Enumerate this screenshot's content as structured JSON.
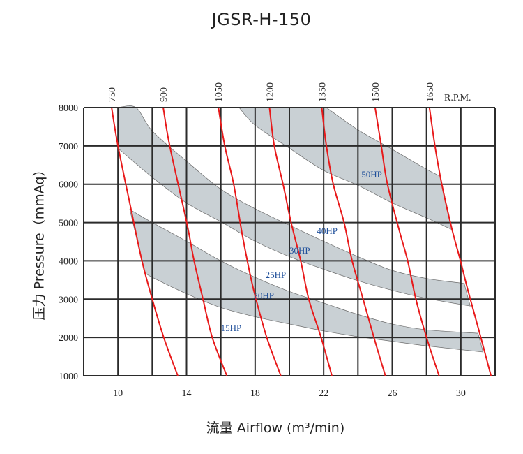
{
  "chart_data": {
    "type": "line",
    "title": "JGSR-H-150",
    "xlabel": "流量 Airflow (m³/min)",
    "ylabel": "压力 Pressure（mmAq）",
    "xlim": [
      8,
      32
    ],
    "ylim": [
      1000,
      8000
    ],
    "x_grid_step": 2,
    "y_grid_step": 1000,
    "grid": true,
    "x_tick_labels": [
      10,
      14,
      18,
      22,
      26,
      30
    ],
    "y_tick_labels": [
      1000,
      2000,
      3000,
      4000,
      5000,
      6000,
      7000,
      8000
    ],
    "rpm_unit_label": "R.P.M.",
    "series_color": "#e8191a",
    "band_color": "#c9d0d4",
    "label_color": "#1f4f9a",
    "series": [
      {
        "name": "750",
        "points": [
          [
            9.63,
            8000
          ],
          [
            10.0,
            7000
          ],
          [
            10.77,
            5330
          ],
          [
            11.4,
            4000
          ],
          [
            12.0,
            3000
          ],
          [
            12.67,
            2000
          ],
          [
            13.49,
            1000
          ]
        ]
      },
      {
        "name": "900",
        "points": [
          [
            12.64,
            8000
          ],
          [
            13.02,
            7000
          ],
          [
            14.01,
            5000
          ],
          [
            14.44,
            4000
          ],
          [
            14.96,
            3000
          ],
          [
            15.5,
            2000
          ],
          [
            16.35,
            1000
          ]
        ]
      },
      {
        "name": "1050",
        "points": [
          [
            15.86,
            8000
          ],
          [
            16.23,
            7000
          ],
          [
            16.75,
            6000
          ],
          [
            17.26,
            4660
          ],
          [
            17.73,
            3600
          ],
          [
            18.05,
            3000
          ],
          [
            18.68,
            2000
          ],
          [
            19.5,
            1000
          ]
        ]
      },
      {
        "name": "1200",
        "points": [
          [
            18.84,
            8000
          ],
          [
            19.12,
            7000
          ],
          [
            19.63,
            6000
          ],
          [
            20.1,
            5000
          ],
          [
            20.66,
            4000
          ],
          [
            21.13,
            3000
          ],
          [
            21.85,
            2000
          ],
          [
            22.48,
            1000
          ]
        ]
      },
      {
        "name": "1350",
        "points": [
          [
            21.89,
            8000
          ],
          [
            22.16,
            7000
          ],
          [
            22.56,
            6000
          ],
          [
            23.19,
            5000
          ],
          [
            23.66,
            4000
          ],
          [
            24.3,
            3000
          ],
          [
            24.93,
            2000
          ],
          [
            25.6,
            1000
          ]
        ]
      },
      {
        "name": "1500",
        "points": [
          [
            25.0,
            8000
          ],
          [
            25.36,
            7000
          ],
          [
            25.72,
            6000
          ],
          [
            26.43,
            4760
          ],
          [
            26.9,
            4000
          ],
          [
            27.38,
            3000
          ],
          [
            28.0,
            2000
          ],
          [
            28.73,
            1000
          ]
        ]
      },
      {
        "name": "1650",
        "points": [
          [
            28.17,
            8000
          ],
          [
            28.49,
            7000
          ],
          [
            28.89,
            6000
          ],
          [
            29.47,
            4850
          ],
          [
            29.98,
            4000
          ],
          [
            30.39,
            3270
          ],
          [
            31.1,
            2110
          ],
          [
            31.76,
            1000
          ]
        ]
      }
    ],
    "bands": [
      {
        "upper": [
          [
            10.69,
            5340
          ],
          [
            12.0,
            5000
          ],
          [
            14.0,
            4510
          ],
          [
            16.0,
            4000
          ],
          [
            18.0,
            3570
          ],
          [
            20.0,
            3200
          ],
          [
            22.0,
            2900
          ],
          [
            24.0,
            2600
          ],
          [
            26.0,
            2350
          ],
          [
            28.0,
            2200
          ],
          [
            31.0,
            2110
          ]
        ],
        "lower": [
          [
            11.56,
            3690
          ],
          [
            12.0,
            3570
          ],
          [
            14.0,
            3140
          ],
          [
            16.0,
            2780
          ],
          [
            18.0,
            2540
          ],
          [
            20.0,
            2350
          ],
          [
            22.0,
            2170
          ],
          [
            24.0,
            2020
          ],
          [
            26.0,
            1900
          ],
          [
            28.0,
            1780
          ],
          [
            31.3,
            1620
          ]
        ]
      },
      {
        "upper": [
          [
            10.0,
            8000
          ],
          [
            11.05,
            8000
          ],
          [
            12.0,
            7390
          ],
          [
            14.0,
            6600
          ],
          [
            16.0,
            5870
          ],
          [
            18.0,
            5360
          ],
          [
            20.0,
            4930
          ],
          [
            22.0,
            4510
          ],
          [
            24.0,
            4110
          ],
          [
            26.0,
            3750
          ],
          [
            28.0,
            3540
          ],
          [
            30.0,
            3420
          ],
          [
            30.2,
            3400
          ]
        ],
        "lower": [
          [
            10.0,
            6940
          ],
          [
            12.0,
            6180
          ],
          [
            14.0,
            5510
          ],
          [
            16.0,
            5020
          ],
          [
            18.0,
            4510
          ],
          [
            20.0,
            4110
          ],
          [
            22.0,
            3780
          ],
          [
            24.0,
            3480
          ],
          [
            26.0,
            3230
          ],
          [
            28.0,
            3020
          ],
          [
            30.55,
            2820
          ]
        ]
      },
      {
        "upper": [
          [
            22.16,
            8000
          ],
          [
            24.0,
            7420
          ],
          [
            26.0,
            6910
          ],
          [
            28.0,
            6390
          ],
          [
            28.8,
            6210
          ]
        ],
        "lower": [
          [
            17.07,
            8000
          ],
          [
            18.0,
            7540
          ],
          [
            20.0,
            6940
          ],
          [
            22.0,
            6360
          ],
          [
            24.0,
            5970
          ],
          [
            26.0,
            5510
          ],
          [
            28.0,
            5120
          ],
          [
            29.5,
            4810
          ]
        ]
      }
    ],
    "annotations": [
      {
        "text": "50HP",
        "x": 24.2,
        "y": 6270
      },
      {
        "text": "40HP",
        "x": 21.6,
        "y": 4790
      },
      {
        "text": "30HP",
        "x": 20.0,
        "y": 4280
      },
      {
        "text": "25HP",
        "x": 18.6,
        "y": 3640
      },
      {
        "text": "20HP",
        "x": 17.9,
        "y": 3110
      },
      {
        "text": "15HP",
        "x": 16.0,
        "y": 2260
      }
    ]
  }
}
